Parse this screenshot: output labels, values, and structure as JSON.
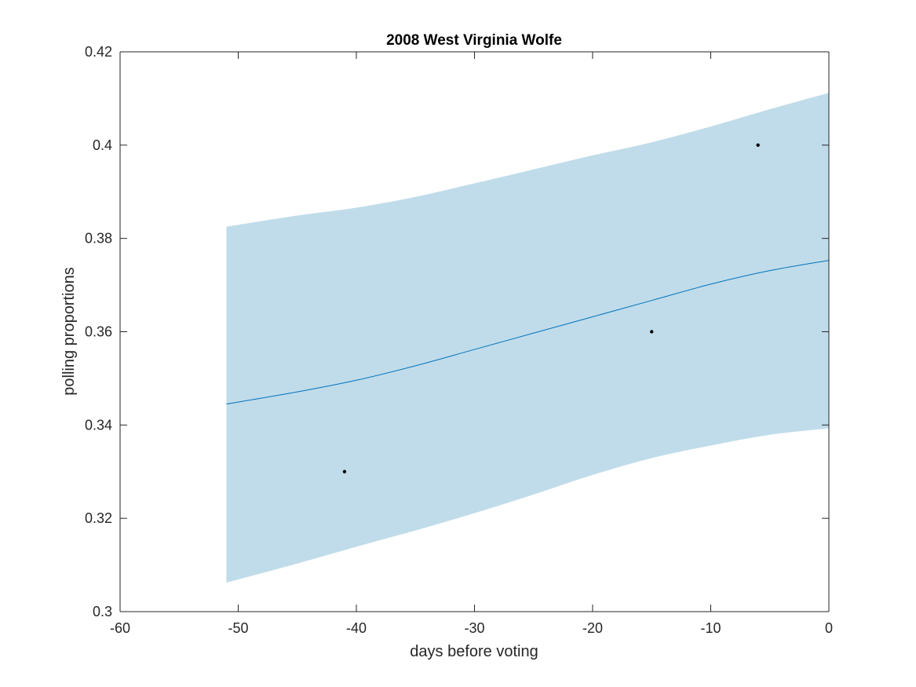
{
  "chart_data": {
    "type": "line",
    "title": "2008 West Virginia Wolfe",
    "xlabel": "days before voting",
    "ylabel": "polling proportions",
    "xlim": [
      -60,
      0
    ],
    "ylim": [
      0.3,
      0.42
    ],
    "xticks": [
      -60,
      -50,
      -40,
      -30,
      -20,
      -10,
      0
    ],
    "xtick_labels": [
      "-60",
      "-50",
      "-40",
      "-30",
      "-20",
      "-10",
      "0"
    ],
    "yticks": [
      0.3,
      0.32,
      0.34,
      0.36,
      0.38,
      0.4,
      0.42
    ],
    "ytick_labels": [
      "0.3",
      "0.32",
      "0.34",
      "0.36",
      "0.38",
      "0.4",
      "0.42"
    ],
    "grid": false,
    "legend": "none",
    "colors": {
      "band": "#c0dcea",
      "line": "#0072bd",
      "points": "#000000",
      "axes": "#262626"
    },
    "series": [
      {
        "type": "area",
        "x": [
          -51,
          -45,
          -40,
          -35,
          -30,
          -25,
          -20,
          -15,
          -10,
          -5,
          0
        ],
        "upper": [
          0.3825,
          0.3849,
          0.3866,
          0.3889,
          0.3918,
          0.3948,
          0.3978,
          0.4006,
          0.404,
          0.4077,
          0.4112
        ],
        "lower": [
          0.3062,
          0.3103,
          0.3139,
          0.3174,
          0.3211,
          0.3251,
          0.3293,
          0.3329,
          0.3356,
          0.3379,
          0.3393
        ]
      },
      {
        "type": "line",
        "x": [
          -51,
          -45,
          -40,
          -35,
          -30,
          -25,
          -20,
          -15,
          -10,
          -5,
          0
        ],
        "y": [
          0.3445,
          0.3471,
          0.3496,
          0.3527,
          0.3562,
          0.3597,
          0.3632,
          0.3667,
          0.3702,
          0.3731,
          0.3753
        ]
      },
      {
        "type": "scatter",
        "x": [
          -41,
          -15,
          -6
        ],
        "y": [
          0.33,
          0.36,
          0.4
        ]
      }
    ]
  }
}
